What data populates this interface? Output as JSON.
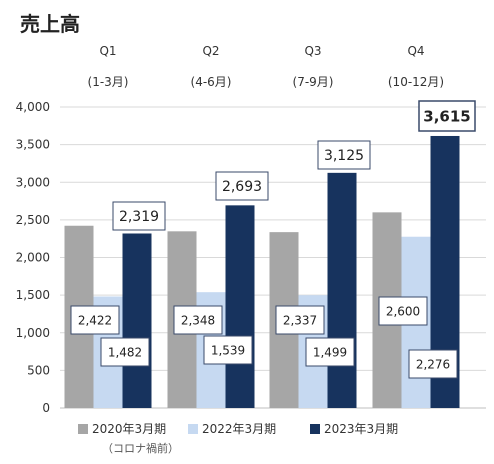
{
  "title": "売上高",
  "legend": {
    "note": "（コロナ禍前）"
  },
  "colors": {
    "s2020": "#a6a6a6",
    "s2022": "#c6d9f1",
    "s2023": "#17335e"
  },
  "chart_data": {
    "type": "bar",
    "title": "売上高",
    "categories": [
      "Q1",
      "Q2",
      "Q3",
      "Q4"
    ],
    "sub_categories": [
      "(1-3月)",
      "(4-6月)",
      "(7-9月)",
      "(10-12月)"
    ],
    "series": [
      {
        "name": "2020年3月期",
        "values": [
          2422,
          2348,
          2337,
          2600
        ]
      },
      {
        "name": "2022年3月期",
        "values": [
          1482,
          1539,
          1499,
          2276
        ]
      },
      {
        "name": "2023年3月期",
        "values": [
          2319,
          2693,
          3125,
          3615
        ]
      }
    ],
    "data_labels": {
      "2020年3月期": [
        "2,422",
        "2,348",
        "2,337",
        "2,600"
      ],
      "2022年3月期": [
        "1,482",
        "1,539",
        "1,499",
        "2,276"
      ],
      "2023年3月期": [
        "2,319",
        "2,693",
        "3,125",
        "3,615"
      ]
    },
    "y_ticks": [
      0,
      500,
      1000,
      1500,
      2000,
      2500,
      3000,
      3500,
      4000
    ],
    "y_tick_labels": [
      "0",
      "500",
      "1,000",
      "1,500",
      "2,000",
      "2,500",
      "3,000",
      "3,500",
      "4,000"
    ],
    "ylim": [
      0,
      4000
    ],
    "grid": true,
    "legend_position": "bottom"
  }
}
